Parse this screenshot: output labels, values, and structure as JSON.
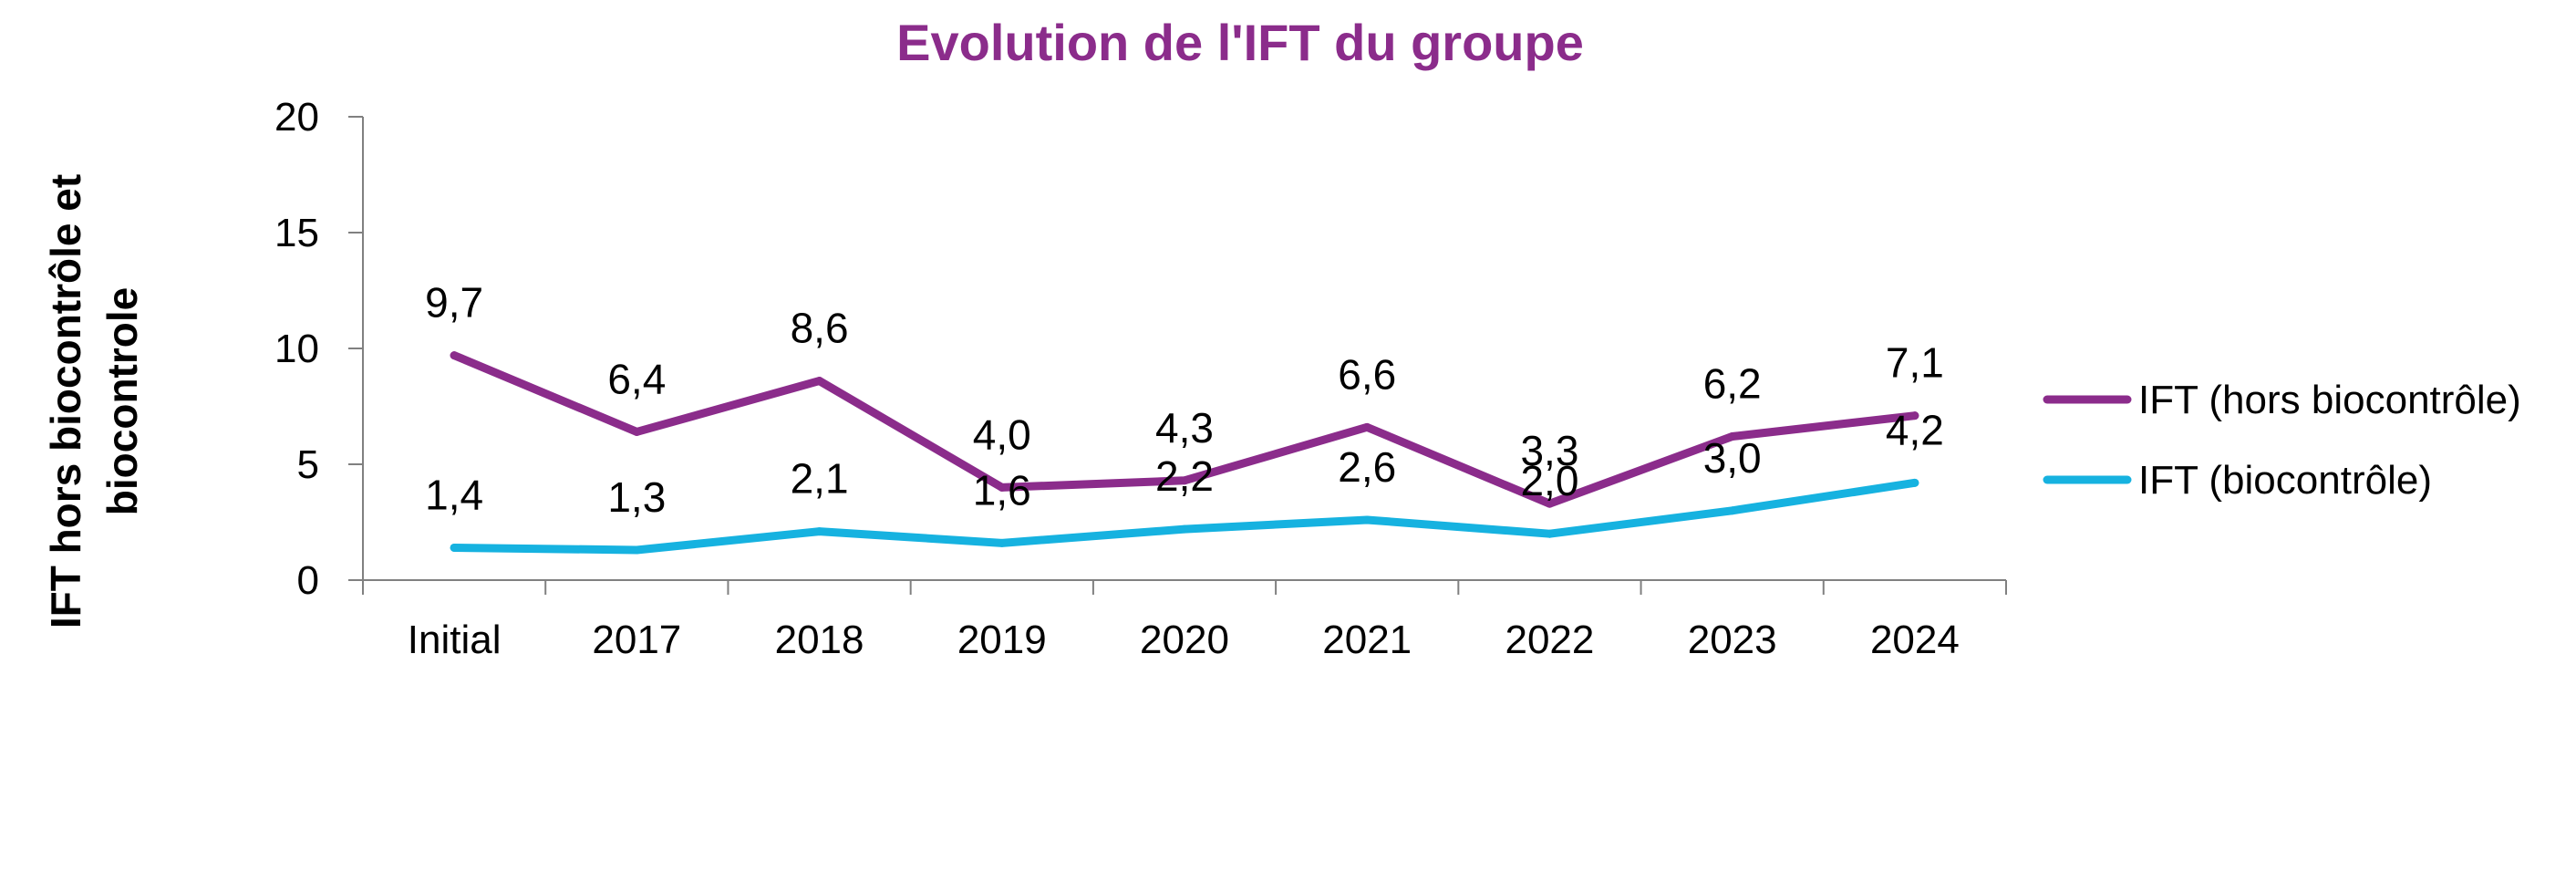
{
  "chart_data": {
    "type": "line",
    "title": "Evolution de l'IFT du groupe",
    "xlabel": "",
    "ylabel_lines": [
      "IFT  hors biocontrôle et",
      "biocontrole"
    ],
    "categories": [
      "Initial",
      "2017",
      "2018",
      "2019",
      "2020",
      "2021",
      "2022",
      "2023",
      "2024"
    ],
    "ylim": [
      0,
      20
    ],
    "yticks": [
      0,
      5,
      10,
      15,
      20
    ],
    "ytick_labels": [
      "0",
      "5",
      "10",
      "15",
      "20"
    ],
    "grid": false,
    "legend_position": "right",
    "series": [
      {
        "name": "IFT (hors biocontrôle)",
        "color": "#8B2C8B",
        "values": [
          9.7,
          6.4,
          8.6,
          4.0,
          4.3,
          6.6,
          3.3,
          6.2,
          7.1
        ],
        "labels": [
          "9,7",
          "6,4",
          "8,6",
          "4,0",
          "4,3",
          "6,6",
          "3,3",
          "6,2",
          "7,1"
        ]
      },
      {
        "name": "IFT (biocontrôle)",
        "color": "#16B2E0",
        "values": [
          1.4,
          1.3,
          2.1,
          1.6,
          2.2,
          2.6,
          2.0,
          3.0,
          4.2
        ],
        "labels": [
          "1,4",
          "1,3",
          "2,1",
          "1,6",
          "2,2",
          "2,6",
          "2,0",
          "3,0",
          "4,2"
        ]
      }
    ],
    "title_color": "#8B2C8B",
    "axis_color": "#808080"
  }
}
